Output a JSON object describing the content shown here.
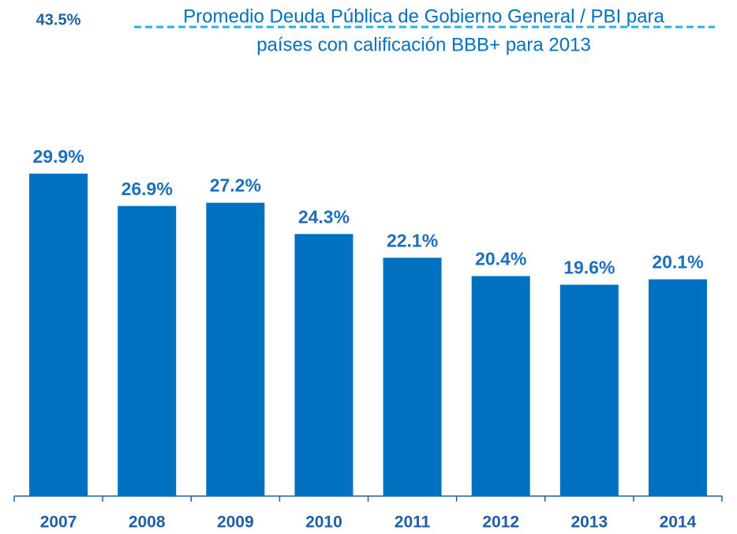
{
  "chart_data": {
    "type": "bar",
    "title_lines": [
      "Promedio Deuda Pública de Gobierno General / PBI para",
      "países con calificación BBB+ para 2013"
    ],
    "categories": [
      "2007",
      "2008",
      "2009",
      "2010",
      "2011",
      "2012",
      "2013",
      "2014"
    ],
    "values": [
      29.9,
      26.9,
      27.2,
      24.3,
      22.1,
      20.4,
      19.6,
      20.1
    ],
    "value_labels": [
      "29.9%",
      "26.9%",
      "27.2%",
      "24.3%",
      "22.1%",
      "20.4%",
      "19.6%",
      "20.1%"
    ],
    "color": "#0070c0",
    "reference_line": {
      "value": 43.5,
      "label": "43.5%",
      "color": "#2ab0e6"
    },
    "ylim": [
      0,
      46
    ]
  }
}
